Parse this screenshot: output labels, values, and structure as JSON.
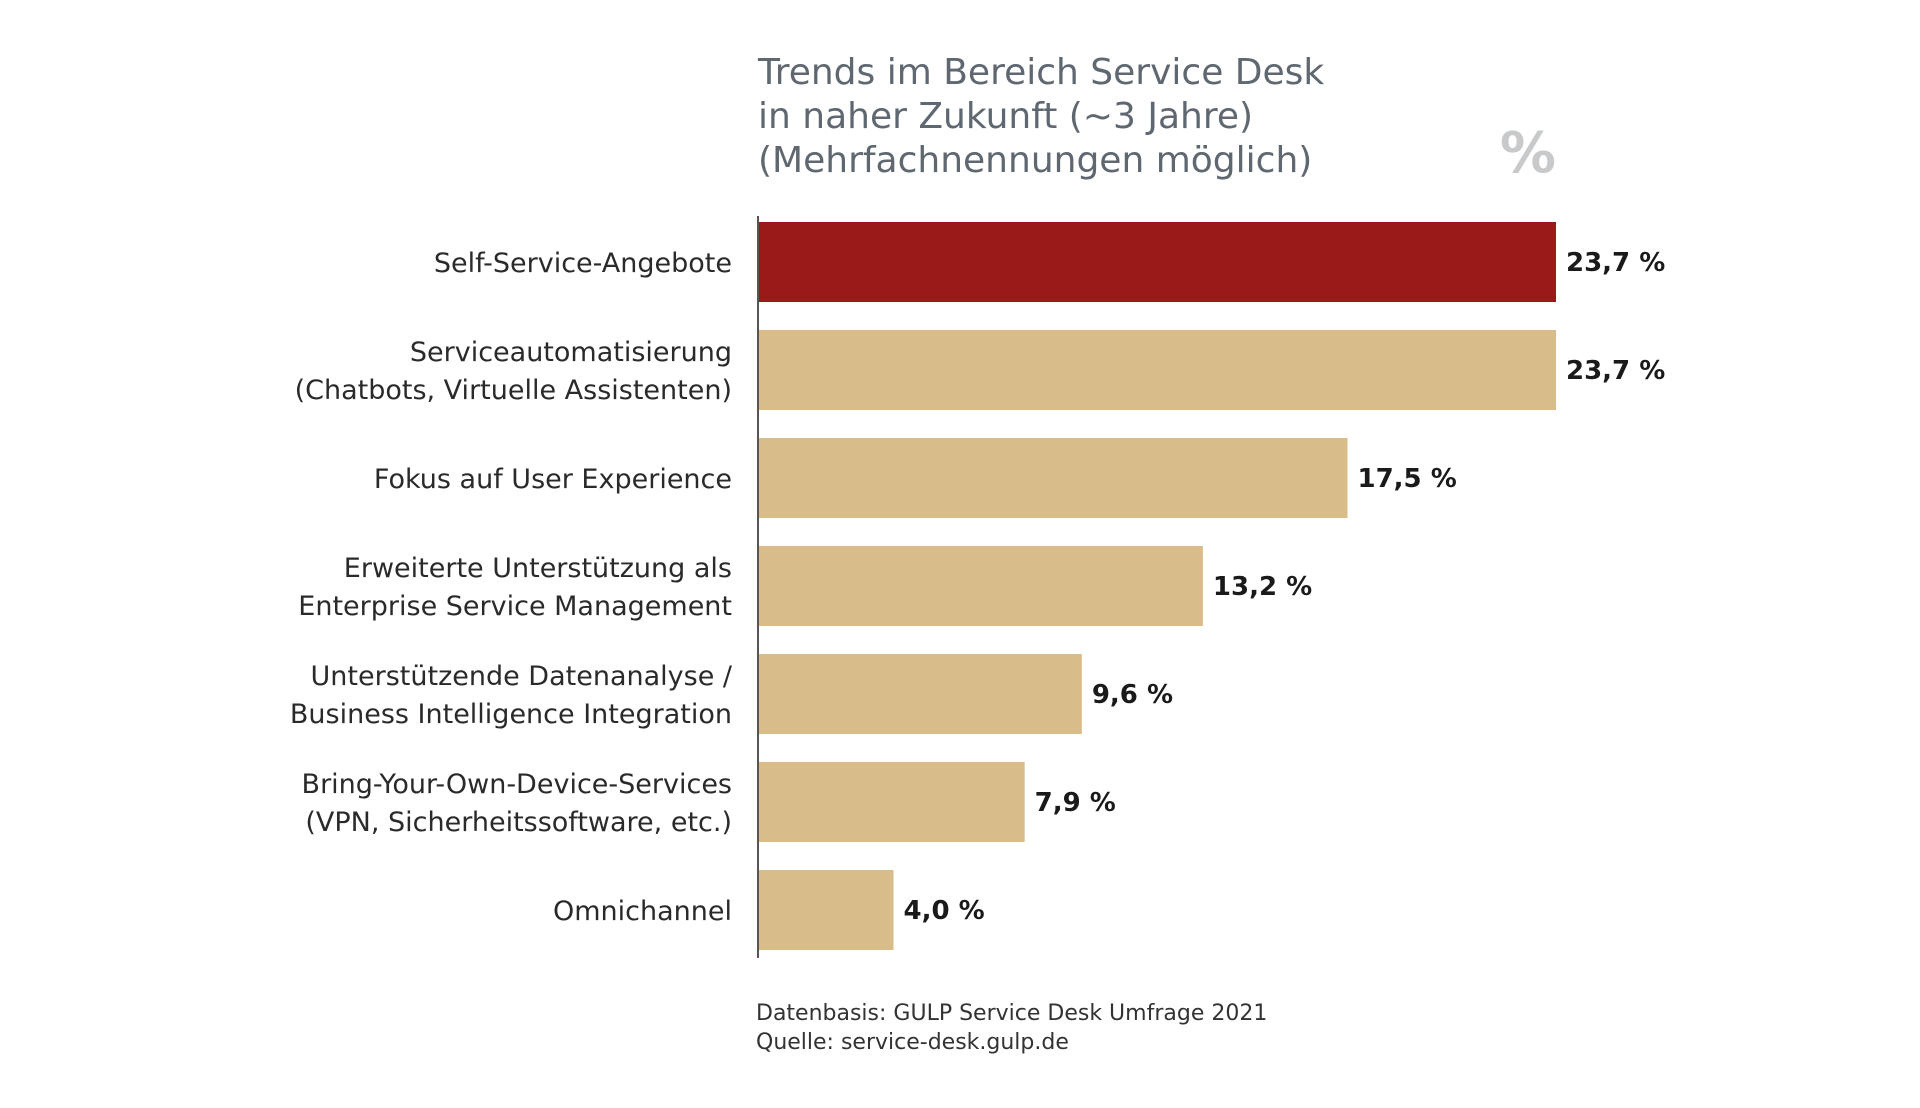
{
  "chart_data": {
    "type": "bar",
    "orientation": "horizontal",
    "title": [
      "Trends im Bereich Service Desk",
      "in naher Zukunft (~3 Jahre)",
      "(Mehrfachnennungen möglich)"
    ],
    "unit_label": "%",
    "categories": [
      [
        "Self-Service-Angebote"
      ],
      [
        "Serviceautomatisierung",
        "(Chatbots, Virtuelle Assistenten)"
      ],
      [
        "Fokus auf User Experience"
      ],
      [
        "Erweiterte Unterstützung  als",
        "Enterprise Service Management"
      ],
      [
        "Unterstützende Datenanalyse /",
        "Business Intelligence Integration"
      ],
      [
        "Bring-Your-Own-Device-Services",
        "(VPN, Sicherheitssoftware, etc.)"
      ],
      [
        "Omnichannel"
      ]
    ],
    "values": [
      23.7,
      23.7,
      17.5,
      13.2,
      9.6,
      7.9,
      4.0
    ],
    "value_labels": [
      "23,7 %",
      "23,7 %",
      "17,5 %",
      "13,2 %",
      "9,6 %",
      "7,9 %",
      "4,0 %"
    ],
    "xlim": [
      0,
      23.7
    ],
    "highlight_index": 0,
    "colors": {
      "highlight": "#9a1919",
      "default": "#d8bd8a",
      "axis": "#555555"
    },
    "grid": false,
    "legend": "none"
  },
  "footnote": {
    "basis": "Datenbasis: GULP Service Desk Umfrage 2021",
    "source": "Quelle: service-desk.gulp.de"
  }
}
